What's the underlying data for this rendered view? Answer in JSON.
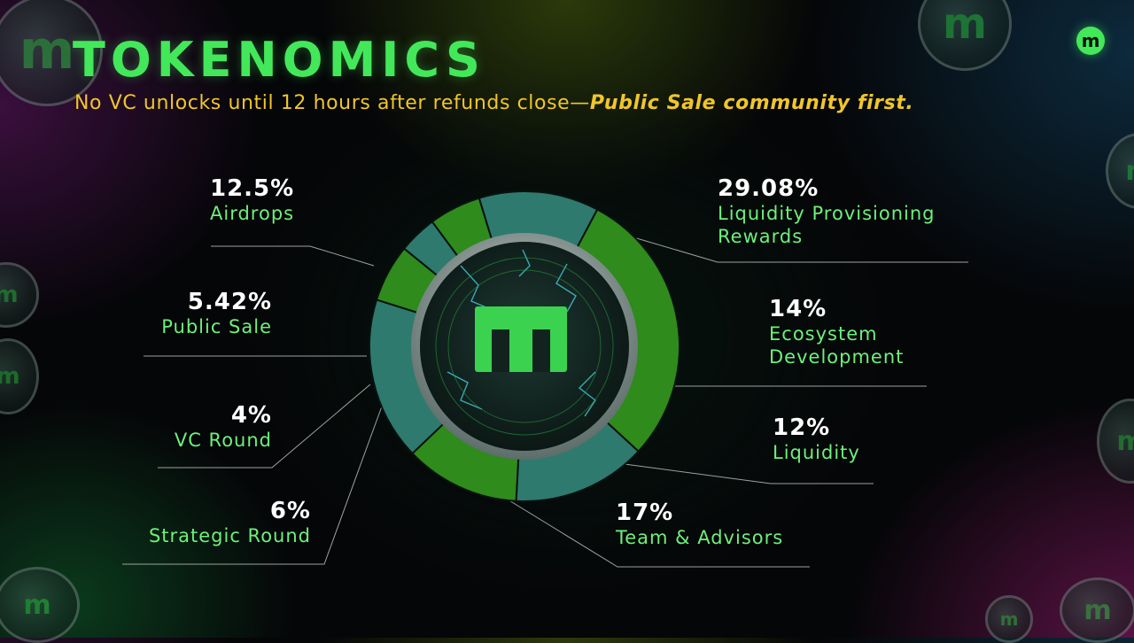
{
  "header": {
    "title": "TOKENOMICS",
    "subtitle_plain": "No VC unlocks until 12 hours after refunds close—",
    "subtitle_emph": "Public Sale community first."
  },
  "chart_data": {
    "type": "pie",
    "title": "TOKENOMICS",
    "legend": "none",
    "slices": [
      {
        "label": "Liquidity Provisioning Rewards",
        "line2": "",
        "value": 29.08,
        "pct": "29.08%",
        "color": "#2e8b1c"
      },
      {
        "label": "Ecosystem Development",
        "line2": "",
        "value": 14,
        "pct": "14%",
        "color": "#2e7a6e"
      },
      {
        "label": "Liquidity",
        "line2": "",
        "value": 12,
        "pct": "12%",
        "color": "#2e8b1c"
      },
      {
        "label": "Team & Advisors",
        "line2": "",
        "value": 17,
        "pct": "17%",
        "color": "#2e7a6e"
      },
      {
        "label": "Strategic Round",
        "line2": "",
        "value": 6,
        "pct": "6%",
        "color": "#2e8b1c"
      },
      {
        "label": "VC Round",
        "line2": "",
        "value": 4,
        "pct": "4%",
        "color": "#2e7a6e"
      },
      {
        "label": "Public Sale",
        "line2": "",
        "value": 5.42,
        "pct": "5.42%",
        "color": "#2e8b1c"
      },
      {
        "label": "Airdrops",
        "line2": "",
        "value": 12.5,
        "pct": "12.5%",
        "color": "#2e7a6e"
      }
    ]
  },
  "labels": {
    "lpr": {
      "pct": "29.08%",
      "line1": "Liquidity Provisioning",
      "line2": "Rewards"
    },
    "eco": {
      "pct": "14%",
      "line1": "Ecosystem",
      "line2": "Development"
    },
    "liq": {
      "pct": "12%",
      "line1": "Liquidity"
    },
    "team": {
      "pct": "17%",
      "line1": "Team & Advisors"
    },
    "strategic": {
      "pct": "6%",
      "line1": "Strategic Round"
    },
    "vc": {
      "pct": "4%",
      "line1": "VC Round"
    },
    "public": {
      "pct": "5.42%",
      "line1": "Public Sale"
    },
    "airdrops": {
      "pct": "12.5%",
      "line1": "Airdrops"
    }
  },
  "brand": {
    "logo_letter": "m",
    "accent": "#43e85a",
    "icon": "m-logo-icon"
  }
}
